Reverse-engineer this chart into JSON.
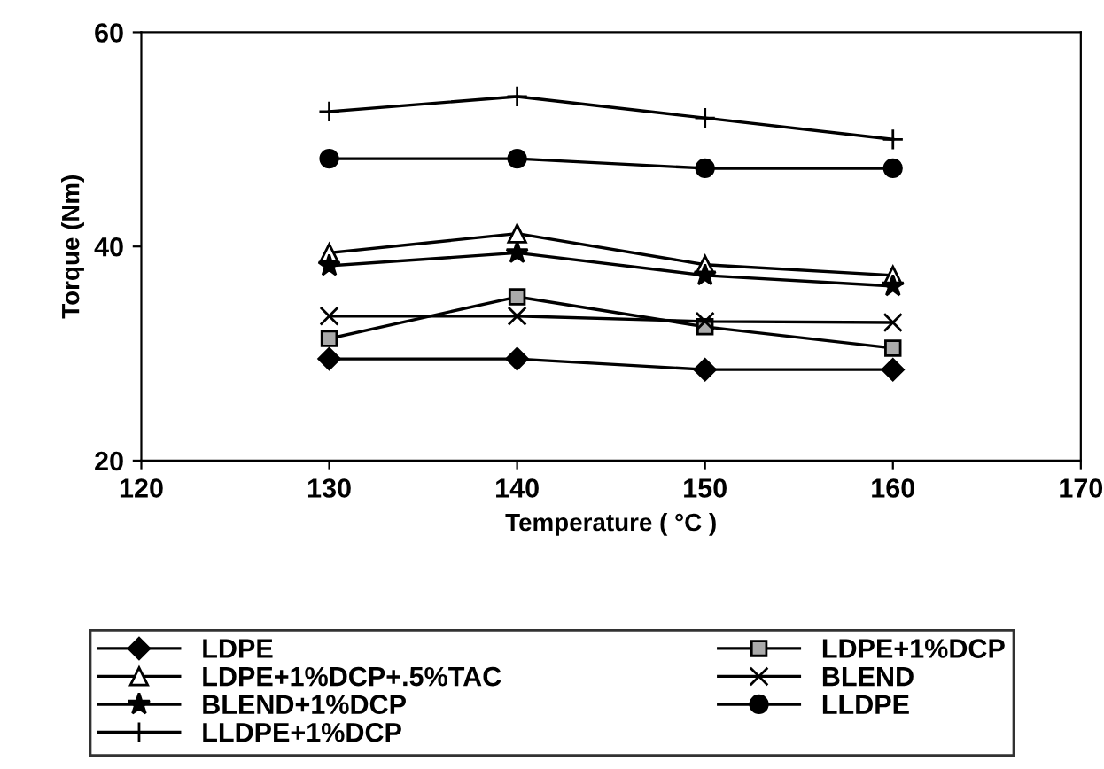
{
  "chart_data": {
    "type": "line",
    "xlabel": "Temperature ( °C )",
    "ylabel": "Torque (Nm)",
    "x": [
      130,
      140,
      150,
      160
    ],
    "xlim": [
      120,
      170
    ],
    "xticks": [
      120,
      130,
      140,
      150,
      160,
      170
    ],
    "ylim": [
      20,
      60
    ],
    "yticks": [
      20,
      40,
      60
    ],
    "grid": false,
    "legend": "bottom",
    "series": [
      {
        "name": "LDPE",
        "color": "#000000",
        "marker": "diamond",
        "values": [
          29.5,
          29.5,
          28.5,
          28.5
        ]
      },
      {
        "name": "LDPE+1%DCP",
        "color": "#000000",
        "marker": "square",
        "values": [
          31.4,
          35.3,
          32.5,
          30.5
        ]
      },
      {
        "name": "LDPE+1%DCP+.5%TAC",
        "color": "#000000",
        "marker": "triangle",
        "values": [
          39.4,
          41.2,
          38.3,
          37.3
        ]
      },
      {
        "name": "BLEND",
        "color": "#000000",
        "marker": "cross",
        "values": [
          33.5,
          33.5,
          33.0,
          32.9
        ]
      },
      {
        "name": "BLEND+1%DCP",
        "color": "#000000",
        "marker": "star",
        "values": [
          38.2,
          39.4,
          37.3,
          36.3
        ]
      },
      {
        "name": "LLDPE",
        "color": "#000000",
        "marker": "circle",
        "values": [
          48.2,
          48.2,
          47.3,
          47.3
        ]
      },
      {
        "name": "LLDPE+1%DCP",
        "color": "#000000",
        "marker": "plus",
        "values": [
          52.6,
          54.0,
          52.0,
          50.0
        ]
      }
    ]
  }
}
